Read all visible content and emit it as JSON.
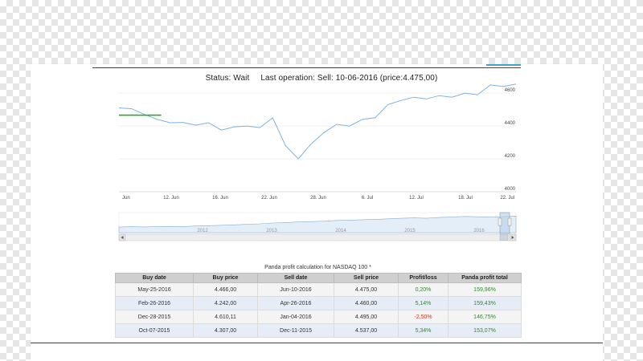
{
  "status": {
    "text": "Status: Wait",
    "last_operation": "Last operation:  Sell: 10-06-2016 (price:4.475,00)"
  },
  "chart_data": {
    "type": "line",
    "x_ticks": [
      "Jun",
      "12. Jun",
      "16. Jun",
      "22. Jun",
      "28. Jun",
      "6. Jul",
      "12. Jul",
      "18. Jul",
      "22. Jul"
    ],
    "y_ticks": [
      "4600",
      "4400",
      "4200",
      "4000"
    ],
    "ylim": [
      4000,
      4620
    ],
    "series": [
      {
        "values": [
          4510,
          4505,
          4470,
          4440,
          4420,
          4422,
          4405,
          4420,
          4375,
          4395,
          4400,
          4390,
          4450,
          4280,
          4200,
          4290,
          4360,
          4410,
          4400,
          4440,
          4450,
          4530,
          4555,
          4575,
          4565,
          4585,
          4575,
          4600,
          4590,
          4650,
          4640,
          4655
        ]
      }
    ],
    "buy_line_value": 4466,
    "navigator": {
      "year_labels": [
        "2012",
        "2013",
        "2014",
        "2015",
        "2016"
      ],
      "values": [
        0.3,
        0.32,
        0.31,
        0.33,
        0.34,
        0.33,
        0.36,
        0.38,
        0.4,
        0.42,
        0.45,
        0.48,
        0.52,
        0.55,
        0.58,
        0.6,
        0.62,
        0.66,
        0.68,
        0.7,
        0.72,
        0.75,
        0.78,
        0.8,
        0.78,
        0.82,
        0.85,
        0.88,
        0.86,
        0.84,
        0.87,
        0.9
      ]
    }
  },
  "table": {
    "caption": "Panda profit calculation for NASDAQ 100 *",
    "headers": [
      "Buy date",
      "Buy price",
      "Sell date",
      "Sell price",
      "Profit/loss",
      "Panda profit total"
    ],
    "rows": [
      [
        "May-25-2016",
        "4.466,00",
        "Jun-10-2016",
        "4.475,00",
        "0,20%",
        "159,96%"
      ],
      [
        "Feb-26-2016",
        "4.242,00",
        "Apr-26-2016",
        "4.460,00",
        "5,14%",
        "159,43%"
      ],
      [
        "Dec-28-2015",
        "4.610,11",
        "Jan-04-2016",
        "4.495,00",
        "-2,50%",
        "146,75%"
      ],
      [
        "Oct-07-2015",
        "4.307,00",
        "Dec-11-2015",
        "4.537,00",
        "5,34%",
        "153,07%"
      ]
    ]
  },
  "colors": {
    "line": "#7fb2df",
    "buy_line": "#2aa82a",
    "positive": "#2f8a2f",
    "negative": "#c0392b"
  },
  "icons": {
    "scroll_left": "arrow-left-icon",
    "scroll_right": "arrow-right-icon"
  }
}
